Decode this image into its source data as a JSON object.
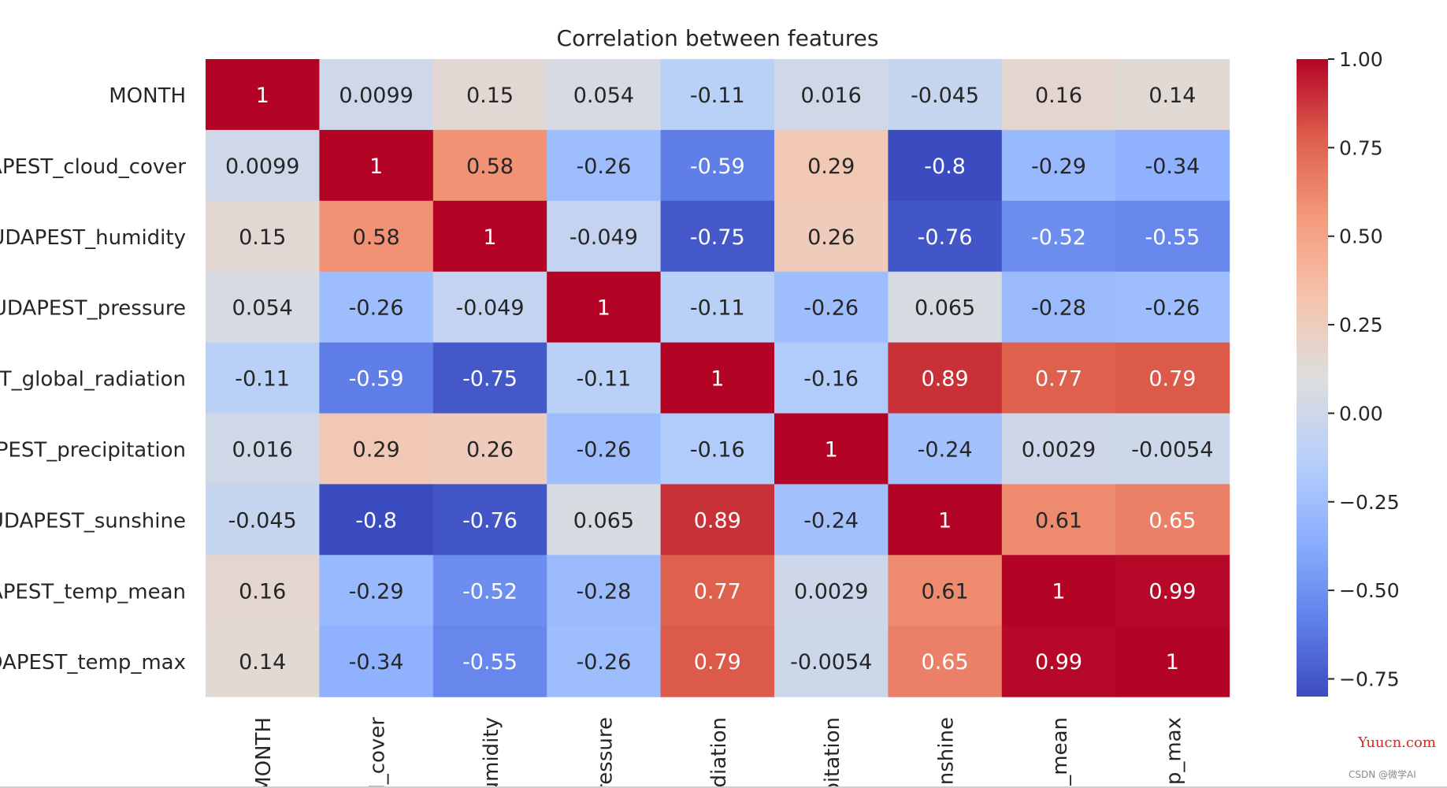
{
  "chart_data": {
    "type": "heatmap",
    "title": "Correlation between features",
    "row_labels": [
      "MONTH",
      "APEST_cloud_cover",
      "UDAPEST_humidity",
      "UDAPEST_pressure",
      "ST_global_radiation",
      "APEST_precipitation",
      "UDAPEST_sunshine",
      "APEST_temp_mean",
      "DAPEST_temp_max"
    ],
    "col_labels": [
      "MONTH",
      "d_cover",
      "humidity",
      "ressure",
      "adiation",
      "ipitation",
      "unshine",
      "p_mean",
      "mp_max"
    ],
    "values": [
      [
        1,
        0.0099,
        0.15,
        0.054,
        -0.11,
        0.016,
        -0.045,
        0.16,
        0.14
      ],
      [
        0.0099,
        1,
        0.58,
        -0.26,
        -0.59,
        0.29,
        -0.8,
        -0.29,
        -0.34
      ],
      [
        0.15,
        0.58,
        1,
        -0.049,
        -0.75,
        0.26,
        -0.76,
        -0.52,
        -0.55
      ],
      [
        0.054,
        -0.26,
        -0.049,
        1,
        -0.11,
        -0.26,
        0.065,
        -0.28,
        -0.26
      ],
      [
        -0.11,
        -0.59,
        -0.75,
        -0.11,
        1,
        -0.16,
        0.89,
        0.77,
        0.79
      ],
      [
        0.016,
        0.29,
        0.26,
        -0.26,
        -0.16,
        1,
        -0.24,
        0.0029,
        -0.0054
      ],
      [
        -0.045,
        -0.8,
        -0.76,
        0.065,
        0.89,
        -0.24,
        1,
        0.61,
        0.65
      ],
      [
        0.16,
        -0.29,
        -0.52,
        -0.28,
        0.77,
        0.0029,
        0.61,
        1,
        0.99
      ],
      [
        0.14,
        -0.34,
        -0.55,
        -0.26,
        0.79,
        -0.0054,
        0.65,
        0.99,
        1
      ]
    ],
    "annotations": [
      [
        "1",
        "0.0099",
        "0.15",
        "0.054",
        "-0.11",
        "0.016",
        "-0.045",
        "0.16",
        "0.14"
      ],
      [
        "0.0099",
        "1",
        "0.58",
        "-0.26",
        "-0.59",
        "0.29",
        "-0.8",
        "-0.29",
        "-0.34"
      ],
      [
        "0.15",
        "0.58",
        "1",
        "-0.049",
        "-0.75",
        "0.26",
        "-0.76",
        "-0.52",
        "-0.55"
      ],
      [
        "0.054",
        "-0.26",
        "-0.049",
        "1",
        "-0.11",
        "-0.26",
        "0.065",
        "-0.28",
        "-0.26"
      ],
      [
        "-0.11",
        "-0.59",
        "-0.75",
        "-0.11",
        "1",
        "-0.16",
        "0.89",
        "0.77",
        "0.79"
      ],
      [
        "0.016",
        "0.29",
        "0.26",
        "-0.26",
        "-0.16",
        "1",
        "-0.24",
        "0.0029",
        "-0.0054"
      ],
      [
        "-0.045",
        "-0.8",
        "-0.76",
        "0.065",
        "0.89",
        "-0.24",
        "1",
        "0.61",
        "0.65"
      ],
      [
        "0.16",
        "-0.29",
        "-0.52",
        "-0.28",
        "0.77",
        "0.0029",
        "0.61",
        "1",
        "0.99"
      ],
      [
        "0.14",
        "-0.34",
        "-0.55",
        "-0.26",
        "0.79",
        "-0.0054",
        "0.65",
        "0.99",
        "1"
      ]
    ],
    "colormap": "coolwarm",
    "colorbar": {
      "range": [
        -0.8,
        1.0
      ],
      "ticks": [
        1.0,
        0.75,
        0.5,
        0.25,
        0.0,
        -0.25,
        -0.5,
        -0.75
      ],
      "tick_labels": [
        "1.00",
        "0.75",
        "0.50",
        "0.25",
        "0.00",
        "−0.25",
        "−0.50",
        "−0.75"
      ]
    }
  },
  "watermarks": {
    "site": "Yuucn.com",
    "author": "CSDN @微学AI"
  }
}
